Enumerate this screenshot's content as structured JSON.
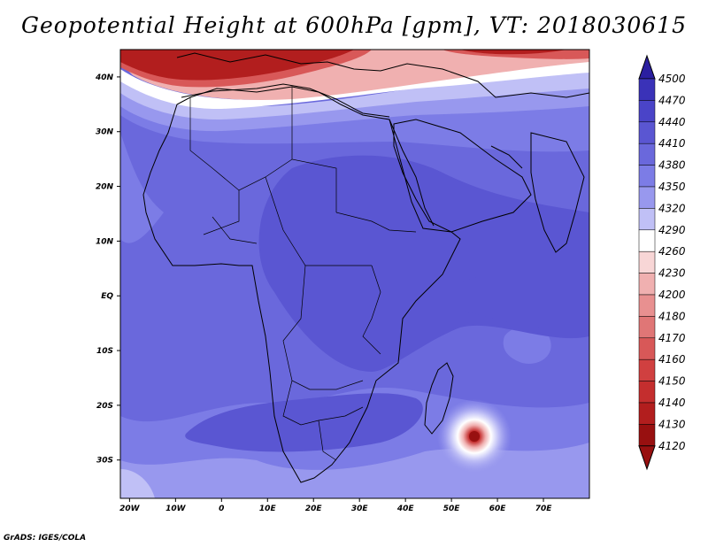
{
  "title": "Geopotential Height at 600hPa [gpm], VT: 2018030615",
  "credit": "GrADS: IGES/COLA",
  "map": {
    "lon_range": [
      -22,
      80
    ],
    "lat_range": [
      -37,
      45
    ],
    "lat_ticks": [
      {
        "value": 40,
        "label": "40N"
      },
      {
        "value": 30,
        "label": "30N"
      },
      {
        "value": 20,
        "label": "20N"
      },
      {
        "value": 10,
        "label": "10N"
      },
      {
        "value": 0,
        "label": "EQ"
      },
      {
        "value": -10,
        "label": "10S"
      },
      {
        "value": -20,
        "label": "20S"
      },
      {
        "value": -30,
        "label": "30S"
      }
    ],
    "lon_ticks": [
      {
        "value": -20,
        "label": "20W"
      },
      {
        "value": -10,
        "label": "10W"
      },
      {
        "value": 0,
        "label": "0"
      },
      {
        "value": 10,
        "label": "10E"
      },
      {
        "value": 20,
        "label": "20E"
      },
      {
        "value": 30,
        "label": "30E"
      },
      {
        "value": 40,
        "label": "40E"
      },
      {
        "value": 50,
        "label": "50E"
      },
      {
        "value": 60,
        "label": "60E"
      },
      {
        "value": 70,
        "label": "70E"
      }
    ]
  },
  "colorbar": {
    "levels": [
      "4500",
      "4470",
      "4440",
      "4410",
      "4380",
      "4350",
      "4320",
      "4290",
      "4260",
      "4230",
      "4200",
      "4180",
      "4170",
      "4160",
      "4150",
      "4140",
      "4130",
      "4120"
    ],
    "colors": [
      "#2b1fa0",
      "#3a32b8",
      "#4a44c8",
      "#5a56d2",
      "#6a68dc",
      "#7c7ce6",
      "#9898ee",
      "#c0c0f6",
      "#ffffff",
      "#f8d6d6",
      "#f0b0b0",
      "#e89090",
      "#e07676",
      "#d85858",
      "#d04040",
      "#c42e2e",
      "#b21e1e",
      "#981010"
    ]
  }
}
